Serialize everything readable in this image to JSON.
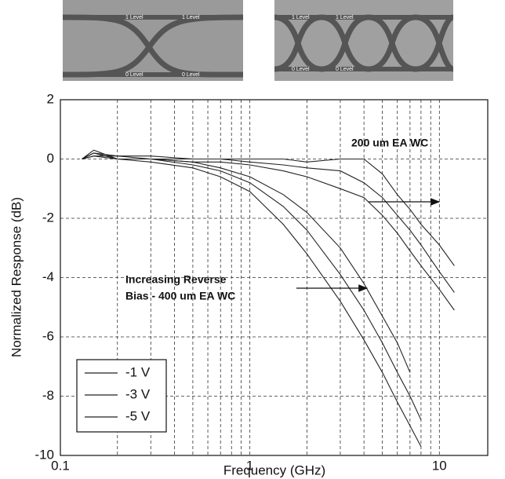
{
  "chart_data": {
    "type": "line",
    "xscale": "log",
    "xlabel": "Frequency (GHz)",
    "ylabel": "Normalized Response (dB)",
    "xlim": [
      0.1,
      18
    ],
    "ylim": [
      -10,
      2
    ],
    "xticks": [
      0.1,
      1,
      10
    ],
    "xminorticks": [
      0.2,
      0.3,
      0.4,
      0.5,
      0.6,
      0.7,
      0.8,
      0.9,
      2,
      3,
      4,
      5,
      6,
      7,
      8,
      9
    ],
    "yticks": [
      -10,
      -8,
      -6,
      -4,
      -2,
      0,
      2
    ],
    "grid": true,
    "legend": "lower left",
    "x": [
      0.13,
      0.15,
      0.2,
      0.3,
      0.5,
      0.7,
      1,
      1.5,
      2,
      3,
      4,
      5,
      6,
      7,
      8,
      10,
      12
    ],
    "series": [
      {
        "name": "-1 V",
        "color": "#222222",
        "values": [
          0,
          0.1,
          0,
          0,
          -0.1,
          -0.3,
          -0.6,
          -1.2,
          -1.8,
          -3.0,
          -4.2,
          -5.3,
          -6.2,
          -7.2,
          null,
          null,
          null
        ],
        "values_wc200": [
          0,
          0.2,
          0.1,
          0.1,
          0,
          0,
          0,
          0,
          -0.1,
          0,
          0,
          -0.5,
          -1.2,
          -1.7,
          -2.2,
          -2.9,
          -3.6
        ]
      },
      {
        "name": "-3 V",
        "color": "#222222",
        "values": [
          0,
          0.2,
          0,
          0,
          -0.2,
          -0.4,
          -0.8,
          -1.6,
          -2.4,
          -3.9,
          -5.1,
          -6.2,
          -7.2,
          -8.0,
          -8.8,
          null,
          null
        ],
        "values_wc200": [
          0,
          0.1,
          0.1,
          0,
          0,
          0,
          -0.1,
          -0.2,
          -0.3,
          -0.4,
          -0.8,
          -1.3,
          -1.9,
          -2.4,
          -2.9,
          -3.8,
          -4.5
        ]
      },
      {
        "name": "-5 V",
        "color": "#222222",
        "values": [
          0,
          0.3,
          0,
          -0.1,
          -0.3,
          -0.6,
          -1.1,
          -2.2,
          -3.2,
          -4.8,
          -6.1,
          -7.2,
          -8.2,
          -9.0,
          -9.7,
          null,
          null
        ],
        "values_wc200": [
          0,
          0.2,
          0,
          0,
          -0.1,
          -0.1,
          -0.2,
          -0.4,
          -0.6,
          -1.0,
          -1.3,
          -1.9,
          -2.5,
          -3.1,
          -3.6,
          -4.4,
          -5.1
        ]
      }
    ],
    "annotations": [
      "200 um EA WC",
      "Increasing Reverse",
      "Bias - 400 um EA WC"
    ]
  },
  "eye_diagrams": [
    {
      "labels": [
        "1 Level",
        "1 Level",
        "0 Level",
        "0 Level"
      ]
    },
    {
      "labels": [
        "1 Level",
        "1 Level",
        "0 Level",
        "0 Level"
      ]
    }
  ]
}
